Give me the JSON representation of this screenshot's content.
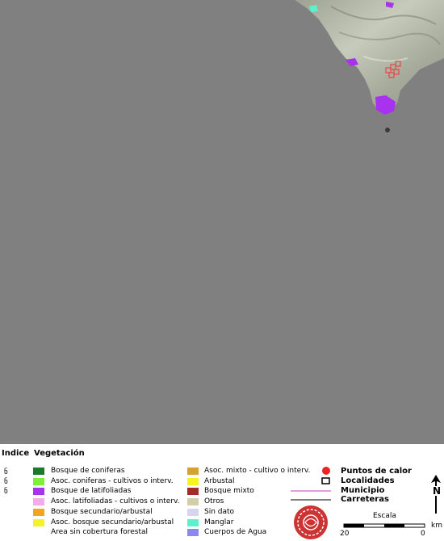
{
  "legend": {
    "indice_header": "Indice",
    "vegetacion_header": "Vegetación",
    "indice_marks": [
      "ნ",
      "ნ",
      "ნ"
    ],
    "vegetation_left": [
      {
        "label": "Bosque de coniferas",
        "color": "#1e7a2a"
      },
      {
        "label": "Asoc. coniferas - cultivos o interv.",
        "color": "#7cf03a"
      },
      {
        "label": "Bosque de latifoliadas",
        "color": "#a733ee"
      },
      {
        "label": "Asoc. latifoliadas - cultivos o interv.",
        "color": "#f7a9ee"
      },
      {
        "label": "Bosque secundario/arbustal",
        "color": "#f6a323"
      },
      {
        "label": "Asoc. bosque secundario/arbustal",
        "color": "#f3f32a"
      },
      {
        "label": "Area sin cobertura forestal",
        "color": ""
      }
    ],
    "vegetation_right": [
      {
        "label": "Asoc. mixto - cultivo o interv.",
        "color": "#d4a22d"
      },
      {
        "label": "Arbustal",
        "color": "#f7f322"
      },
      {
        "label": "Bosque mixto",
        "color": "#a52a2a"
      },
      {
        "label": "Otros",
        "color": "#d2ceaa"
      },
      {
        "label": "Sin dato",
        "color": "#d6d4ee"
      },
      {
        "label": "Manglar",
        "color": "#5cf0cc"
      },
      {
        "label": "Cuerpos de Agua",
        "color": "#8a8aee"
      }
    ],
    "symbols": {
      "puntos_calor": "Puntos de calor",
      "localidades": "Localidades",
      "municipio": "Municipio",
      "carreteras": "Carreteras"
    },
    "scale": {
      "title": "Escala",
      "left_value": "20",
      "right_value": "0",
      "unit": "km"
    },
    "north_letter": "N"
  }
}
